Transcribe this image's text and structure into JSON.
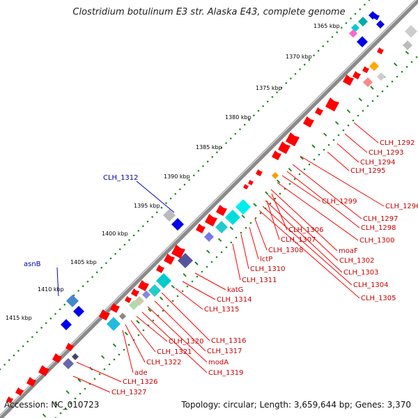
{
  "header": {
    "title": "Clostridium botulinum E3 str. Alaska E43, complete genome"
  },
  "footer": {
    "accession": "Accession: NC_010723",
    "topology": "Topology: circular; Length: 3,659,644 bp; Genes: 3,370"
  },
  "scale": {
    "tick_labels": [
      "1365 kbp",
      "1370 kbp",
      "1375 kbp",
      "1380 kbp",
      "1385 kbp",
      "1390 kbp",
      "1395 kbp",
      "1400 kbp",
      "1405 kbp",
      "1410 kbp",
      "1415 kbp"
    ]
  },
  "labels": {
    "red": [
      "CLH_1292",
      "CLH_1293",
      "CLH_1294",
      "CLH_1295",
      "CLH_1296",
      "CLH_1297",
      "CLH_1298",
      "CLH_1299",
      "CLH_1300",
      "moaF",
      "CLH_1302",
      "CLH_1303",
      "CLH_1304",
      "CLH_1305",
      "CLH_1306",
      "CLH_1307",
      "CLH_1308",
      "lctP",
      "CLH_1310",
      "CLH_1311",
      "katG",
      "CLH_1314",
      "CLH_1315",
      "CLH_1316",
      "CLH_1317",
      "modA",
      "CLH_1319",
      "CLH_1320",
      "CLH_1321",
      "CLH_1322",
      "ade",
      "CLH_1326",
      "CLH_1327"
    ],
    "blue": [
      "CLH_1312",
      "asnB"
    ]
  },
  "colors": {
    "backbone": "#8a8a8a",
    "gene_forward": "#ff0000",
    "gene_reverse": "#0000ee",
    "label_red": "#cc0000",
    "label_blue": "#0000aa",
    "tick_dots": "#228b22"
  }
}
